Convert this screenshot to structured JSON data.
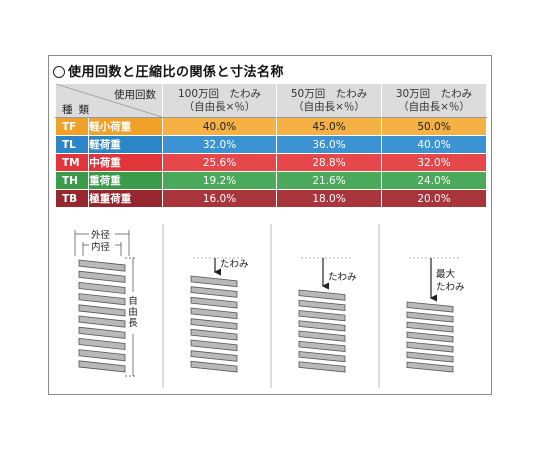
{
  "title": "使用回数と圧縮比の関係と寸法名称",
  "table": {
    "corner_top": "使用回数",
    "corner_bottom": "種類",
    "columns": [
      {
        "line1": "100万回　たわみ",
        "line2": "（自由長×％）"
      },
      {
        "line1": "50万回　たわみ",
        "line2": "（自由長×％）"
      },
      {
        "line1": "30万回　たわみ",
        "line2": "（自由長×％）"
      }
    ],
    "rows": [
      {
        "code": "TF",
        "name": "軽小荷重",
        "values": [
          "40.0%",
          "45.0%",
          "50.0%"
        ],
        "color": "#f0a12a"
      },
      {
        "code": "TL",
        "name": "軽荷重",
        "values": [
          "32.0%",
          "36.0%",
          "40.0%"
        ],
        "color": "#2b86c8"
      },
      {
        "code": "TM",
        "name": "中荷重",
        "values": [
          "25.6%",
          "28.8%",
          "32.0%"
        ],
        "color": "#e0353a"
      },
      {
        "code": "TH",
        "name": "重荷重",
        "values": [
          "19.2%",
          "21.6%",
          "24.0%"
        ],
        "color": "#3a9b4a"
      },
      {
        "code": "TB",
        "name": "極重荷重",
        "values": [
          "16.0%",
          "18.0%",
          "20.0%"
        ],
        "color": "#96272e"
      }
    ]
  },
  "diagrams": {
    "outer_diameter": "外径",
    "inner_diameter": "内径",
    "free_length": "自由長",
    "deflection": "たわみ",
    "max_line1": "最大",
    "max_line2": "たわみ"
  }
}
